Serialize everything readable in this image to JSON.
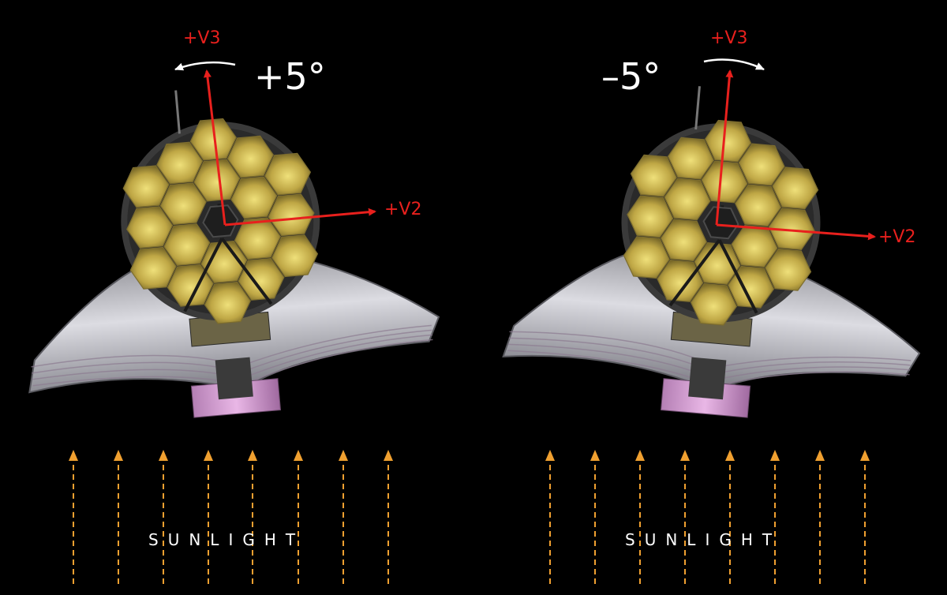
{
  "colors": {
    "background": "#000000",
    "axis": "#e8201d",
    "sunlight": "#f0a030",
    "mirror": "#b8a040",
    "mirror_edge": "#3a3a3a",
    "sunshield": "#c8c8cc",
    "text": "#ffffff"
  },
  "panels": [
    {
      "rotation_label": "+5°",
      "v3_label": "+V3",
      "v2_label": "+V2",
      "sunlight_label": "SUNLIGHT",
      "rotation_direction": "counterclockwise",
      "roll_degrees": 5
    },
    {
      "rotation_label": "–5°",
      "v3_label": "+V3",
      "v2_label": "+V2",
      "sunlight_label": "SUNLIGHT",
      "rotation_direction": "clockwise",
      "roll_degrees": -5
    }
  ]
}
